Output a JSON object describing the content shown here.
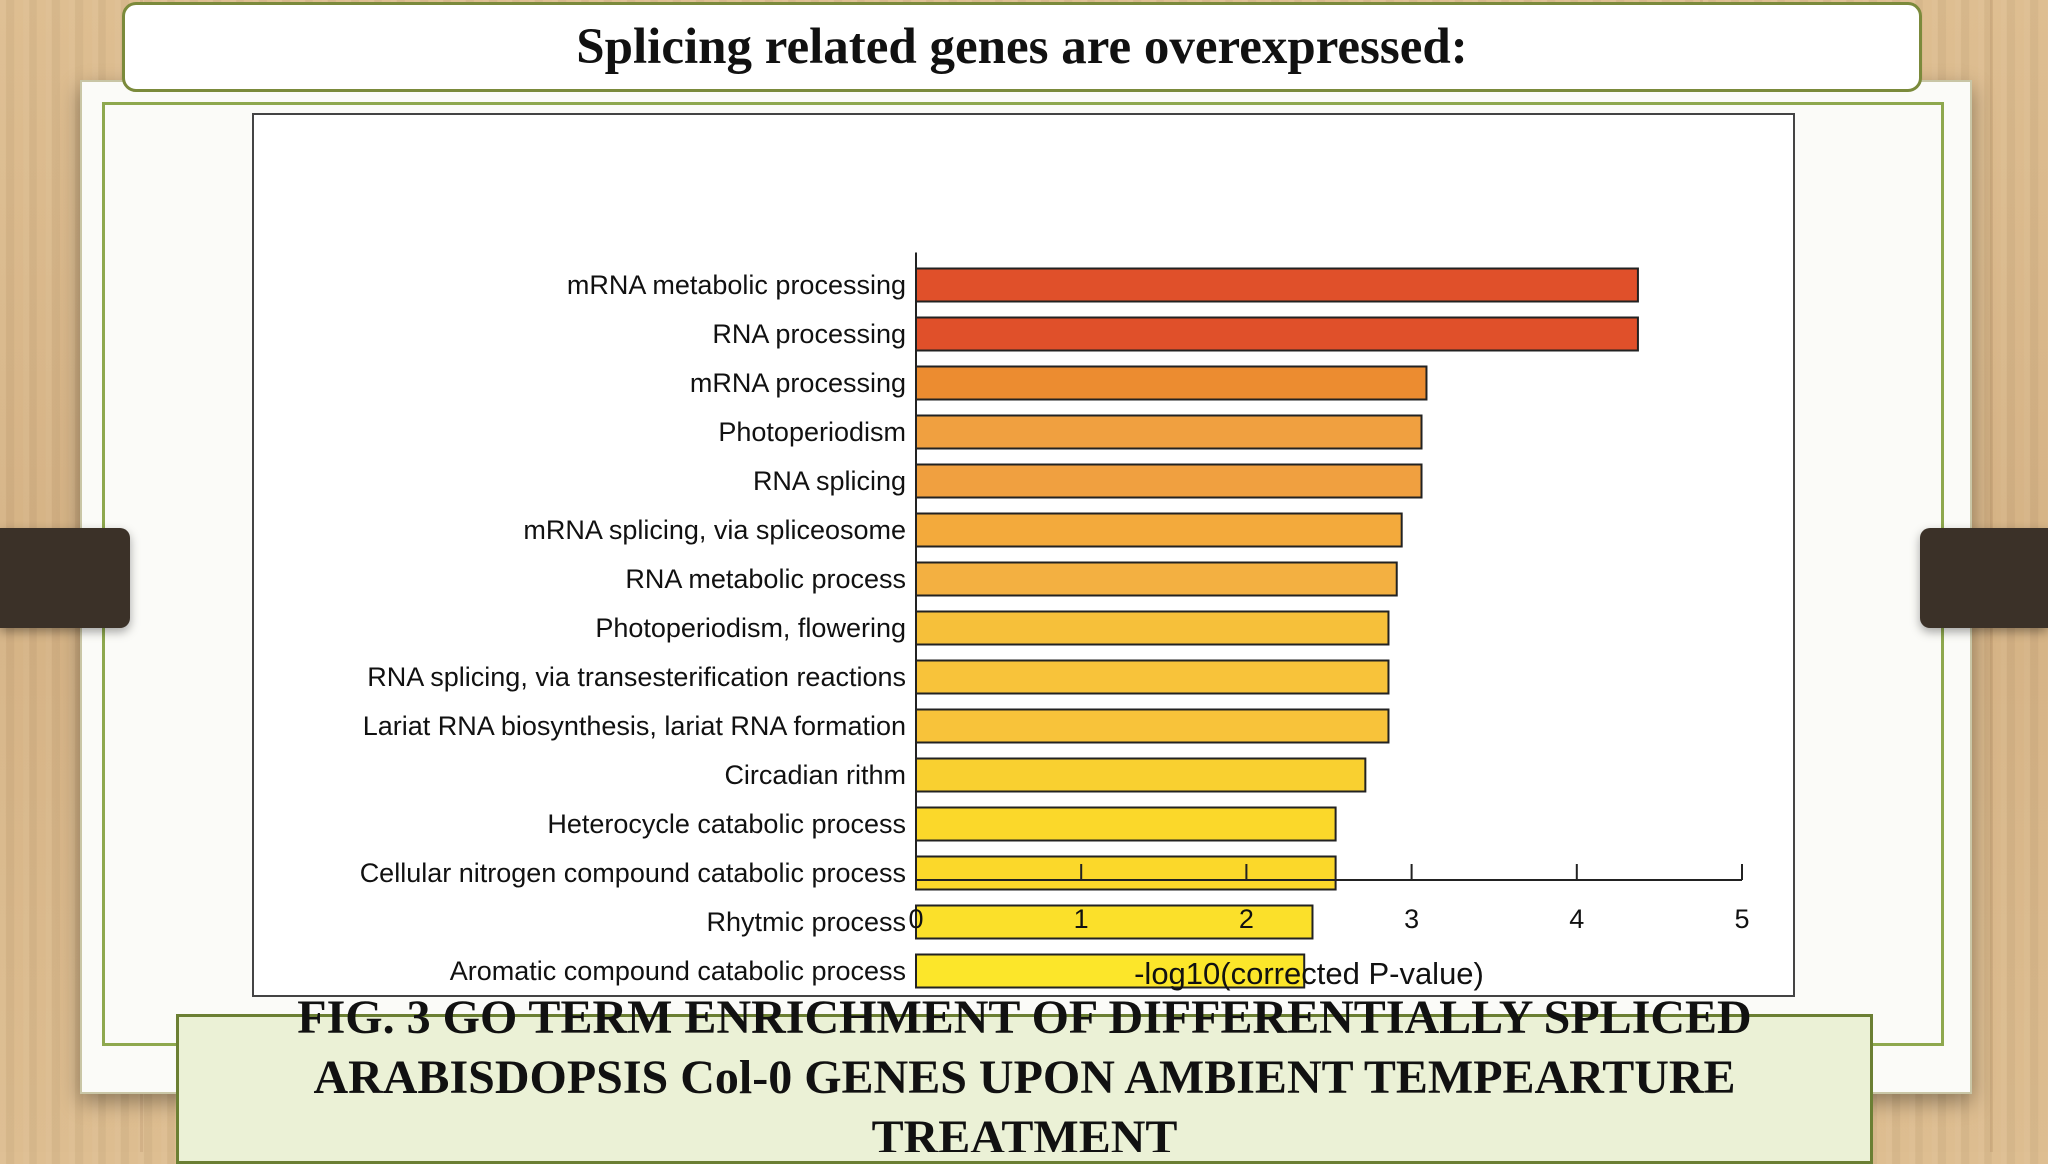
{
  "slide": {
    "title": "Splicing related genes are overexpressed:",
    "caption": "FIG. 3  GO TERM ENRICHMENT OF DIFFERENTIALLY SPLICED ARABISDOPSIS Col-0 GENES UPON AMBIENT TEMPEARTURE TREATMENT"
  },
  "chart_data": {
    "type": "bar",
    "orientation": "horizontal",
    "title": "",
    "xlabel": "-log10(corrected P-value)",
    "ylabel": "",
    "xlim": [
      0,
      5
    ],
    "xticks": [
      "0",
      "1",
      "2",
      "3",
      "4",
      "5"
    ],
    "grid": false,
    "legend": "none",
    "categories": [
      "mRNA metabolic processing",
      "RNA processing",
      "mRNA processing",
      "Photoperiodism",
      "RNA splicing",
      "mRNA splicing, via spliceosome",
      "RNA metabolic process",
      "Photoperiodism, flowering",
      "RNA splicing, via transesterification reactions",
      "Lariat RNA biosynthesis, lariat RNA formation",
      "Circadian rithm",
      "Heterocycle catabolic process",
      "Cellular nitrogen compound catabolic process",
      "Rhytmic process",
      "Aromatic compound catabolic process"
    ],
    "values": [
      4.37,
      4.37,
      3.09,
      3.06,
      3.06,
      2.94,
      2.91,
      2.86,
      2.86,
      2.86,
      2.72,
      2.54,
      2.54,
      2.4,
      2.35
    ],
    "colors": [
      "#e0502a",
      "#e0502a",
      "#ec8c30",
      "#f0a040",
      "#f0a040",
      "#f3aa3c",
      "#f3b041",
      "#f6c03a",
      "#f8c33a",
      "#f8c33a",
      "#f9d030",
      "#fbd82a",
      "#fbd82a",
      "#fbe02a",
      "#fce62a"
    ]
  }
}
